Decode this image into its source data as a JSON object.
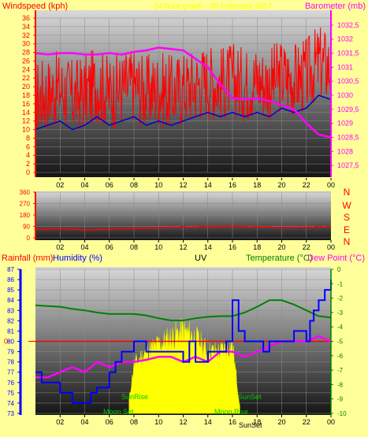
{
  "header": {
    "wind_label": "Windspeed (kph)",
    "title": "24 hour graph - 05 February 2017",
    "baro_label": "Barometer (mb)"
  },
  "compass": [
    "N",
    "W",
    "S",
    "E",
    "N"
  ],
  "bottom_labels": {
    "rain": "Rainfall (mm)",
    "humidity": "Humidity (%)",
    "uv": "UV",
    "temperature": "Temperature (°C)",
    "dewpoint": "Dew Point (°C)"
  },
  "annotations": {
    "sunrise": "SunRise",
    "sunset": "SunSet",
    "moonset": "Moon Set",
    "moonrise": "Moon Rise",
    "sunset2": "SunSet"
  },
  "colors": {
    "background": "#ffff99",
    "wind": "#ff0000",
    "wind_avg": "#0000cc",
    "baro": "#ff00ff",
    "temp": "#008000",
    "humidity": "#0000ff",
    "dew": "#ff00ff",
    "solar": "#ffff00"
  },
  "chart_data": [
    {
      "type": "line",
      "x_ticks": [
        "02",
        "04",
        "06",
        "08",
        "10",
        "12",
        "14",
        "16",
        "18",
        "20",
        "22",
        "00"
      ],
      "left_axis": {
        "ticks": [
          0,
          2,
          4,
          6,
          8,
          10,
          12,
          14,
          16,
          18,
          20,
          22,
          24,
          26,
          28,
          30,
          32,
          34,
          36
        ],
        "ylim": [
          0,
          36
        ]
      },
      "right_axis": {
        "ticks": [
          "1027,5",
          "1028",
          "1028,5",
          "1029",
          "1029,5",
          "1030",
          "1030,5",
          "1031",
          "1031,5",
          "1032",
          "1032,5"
        ],
        "ylim": [
          1027.25,
          1032.75
        ]
      },
      "series": [
        {
          "x": [
            0,
            1,
            2,
            3,
            4,
            5,
            6,
            7,
            8,
            9,
            10,
            11,
            12,
            13,
            14,
            15,
            16,
            17,
            18,
            19,
            20,
            21,
            22,
            23,
            24
          ],
          "values": [
            10,
            11,
            12,
            10,
            11,
            13,
            11,
            12,
            13,
            11,
            12,
            11,
            12,
            13,
            14,
            13,
            14,
            13,
            14,
            13,
            15,
            14,
            15,
            18,
            17
          ]
        },
        {
          "x": [
            0,
            1,
            2,
            3,
            4,
            5,
            6,
            7,
            8,
            9,
            10,
            11,
            12,
            13,
            14,
            15,
            16,
            17,
            18,
            19,
            20,
            21,
            22,
            23,
            24
          ],
          "values": [
            1031.5,
            1031.45,
            1031.5,
            1031.5,
            1031.45,
            1031.45,
            1031.5,
            1031.45,
            1031.55,
            1031.6,
            1031.7,
            1031.65,
            1031.6,
            1031.3,
            1031.0,
            1030.4,
            1029.9,
            1029.85,
            1029.9,
            1029.8,
            1029.65,
            1029.5,
            1029.0,
            1028.6,
            1028.5
          ]
        }
      ],
      "gust_range": [
        6,
        36
      ]
    },
    {
      "type": "line",
      "x_ticks": [
        "02",
        "04",
        "06",
        "08",
        "10",
        "12",
        "14",
        "16",
        "18",
        "20",
        "22",
        "00"
      ],
      "ticks": [
        0,
        90,
        180,
        270,
        360
      ],
      "ylim": [
        0,
        360
      ],
      "series": [
        {
          "x": [
            0,
            2,
            4,
            6,
            8,
            10,
            12,
            14,
            16,
            18,
            20,
            22,
            24
          ],
          "values": [
            65,
            70,
            60,
            68,
            75,
            80,
            85,
            88,
            90,
            85,
            80,
            82,
            88
          ]
        }
      ]
    },
    {
      "type": "line",
      "x_ticks": [
        "02",
        "04",
        "06",
        "08",
        "10",
        "12",
        "14",
        "16",
        "18",
        "20",
        "22",
        "00"
      ],
      "humidity_axis": {
        "ticks": [
          73,
          74,
          75,
          76,
          77,
          78,
          79,
          80,
          81,
          82,
          83,
          84,
          85,
          86,
          87
        ],
        "ylim": [
          73,
          87
        ]
      },
      "temp_axis": {
        "ticks": [
          0,
          -1,
          -2,
          -3,
          -4,
          -5,
          -6,
          -7,
          -8,
          -9,
          -10
        ],
        "ylim": [
          -10,
          0
        ]
      },
      "rain_axis": {
        "ticks": [
          0
        ],
        "value": 0
      },
      "series": [
        {
          "x": [
            0,
            1,
            2,
            3,
            4,
            5,
            6,
            7,
            8,
            9,
            10,
            11,
            12,
            13,
            14,
            15,
            16,
            17,
            18,
            19,
            20,
            21,
            22,
            23,
            24
          ],
          "values": [
            -2.5,
            -2.55,
            -2.6,
            -2.75,
            -2.85,
            -3.0,
            -3.1,
            -3.1,
            -3.1,
            -3.2,
            -3.4,
            -3.55,
            -3.55,
            -3.4,
            -3.3,
            -3.25,
            -3.25,
            -3.0,
            -2.6,
            -2.15,
            -2.15,
            -2.45,
            -2.85,
            -3.25,
            -3.35
          ]
        },
        {
          "x": [
            0,
            1,
            2,
            3,
            4,
            5,
            6,
            7,
            8,
            9,
            10,
            11,
            12,
            13,
            14,
            15,
            16,
            17,
            18,
            19,
            20,
            21,
            22,
            23,
            24
          ],
          "values": [
            76.5,
            76.5,
            77,
            77.5,
            77,
            78,
            77.5,
            78,
            78,
            78.2,
            78.5,
            78.5,
            78,
            78.5,
            78,
            79,
            79,
            78.5,
            79,
            79.5,
            80,
            80,
            80,
            80.5,
            80
          ]
        },
        {
          "x": [
            0,
            0.5,
            1,
            2,
            3,
            4,
            4.5,
            5,
            6,
            6.5,
            7,
            8,
            8.5,
            9,
            10,
            11,
            12,
            12.5,
            13,
            14,
            15,
            15.5,
            16,
            16.5,
            17,
            18,
            18.5,
            19,
            20,
            21,
            22,
            22.3,
            22.6,
            23,
            23.5,
            24
          ],
          "values": [
            77,
            76,
            76,
            75,
            74,
            74,
            75,
            75.5,
            77,
            78,
            79,
            80,
            80,
            79,
            79,
            79,
            78,
            80,
            78,
            79,
            79,
            80,
            84,
            81,
            80,
            80,
            79,
            80,
            80,
            81,
            80,
            82,
            83,
            84,
            85,
            86
          ]
        }
      ],
      "solar": {
        "x": [
          7.6,
          8,
          9,
          10,
          11,
          12,
          13,
          14,
          15,
          16,
          16.6
        ],
        "values": [
          0.1,
          0.35,
          0.45,
          0.5,
          0.55,
          0.6,
          0.55,
          0.45,
          0.45,
          0.5,
          0.05
        ]
      }
    }
  ]
}
